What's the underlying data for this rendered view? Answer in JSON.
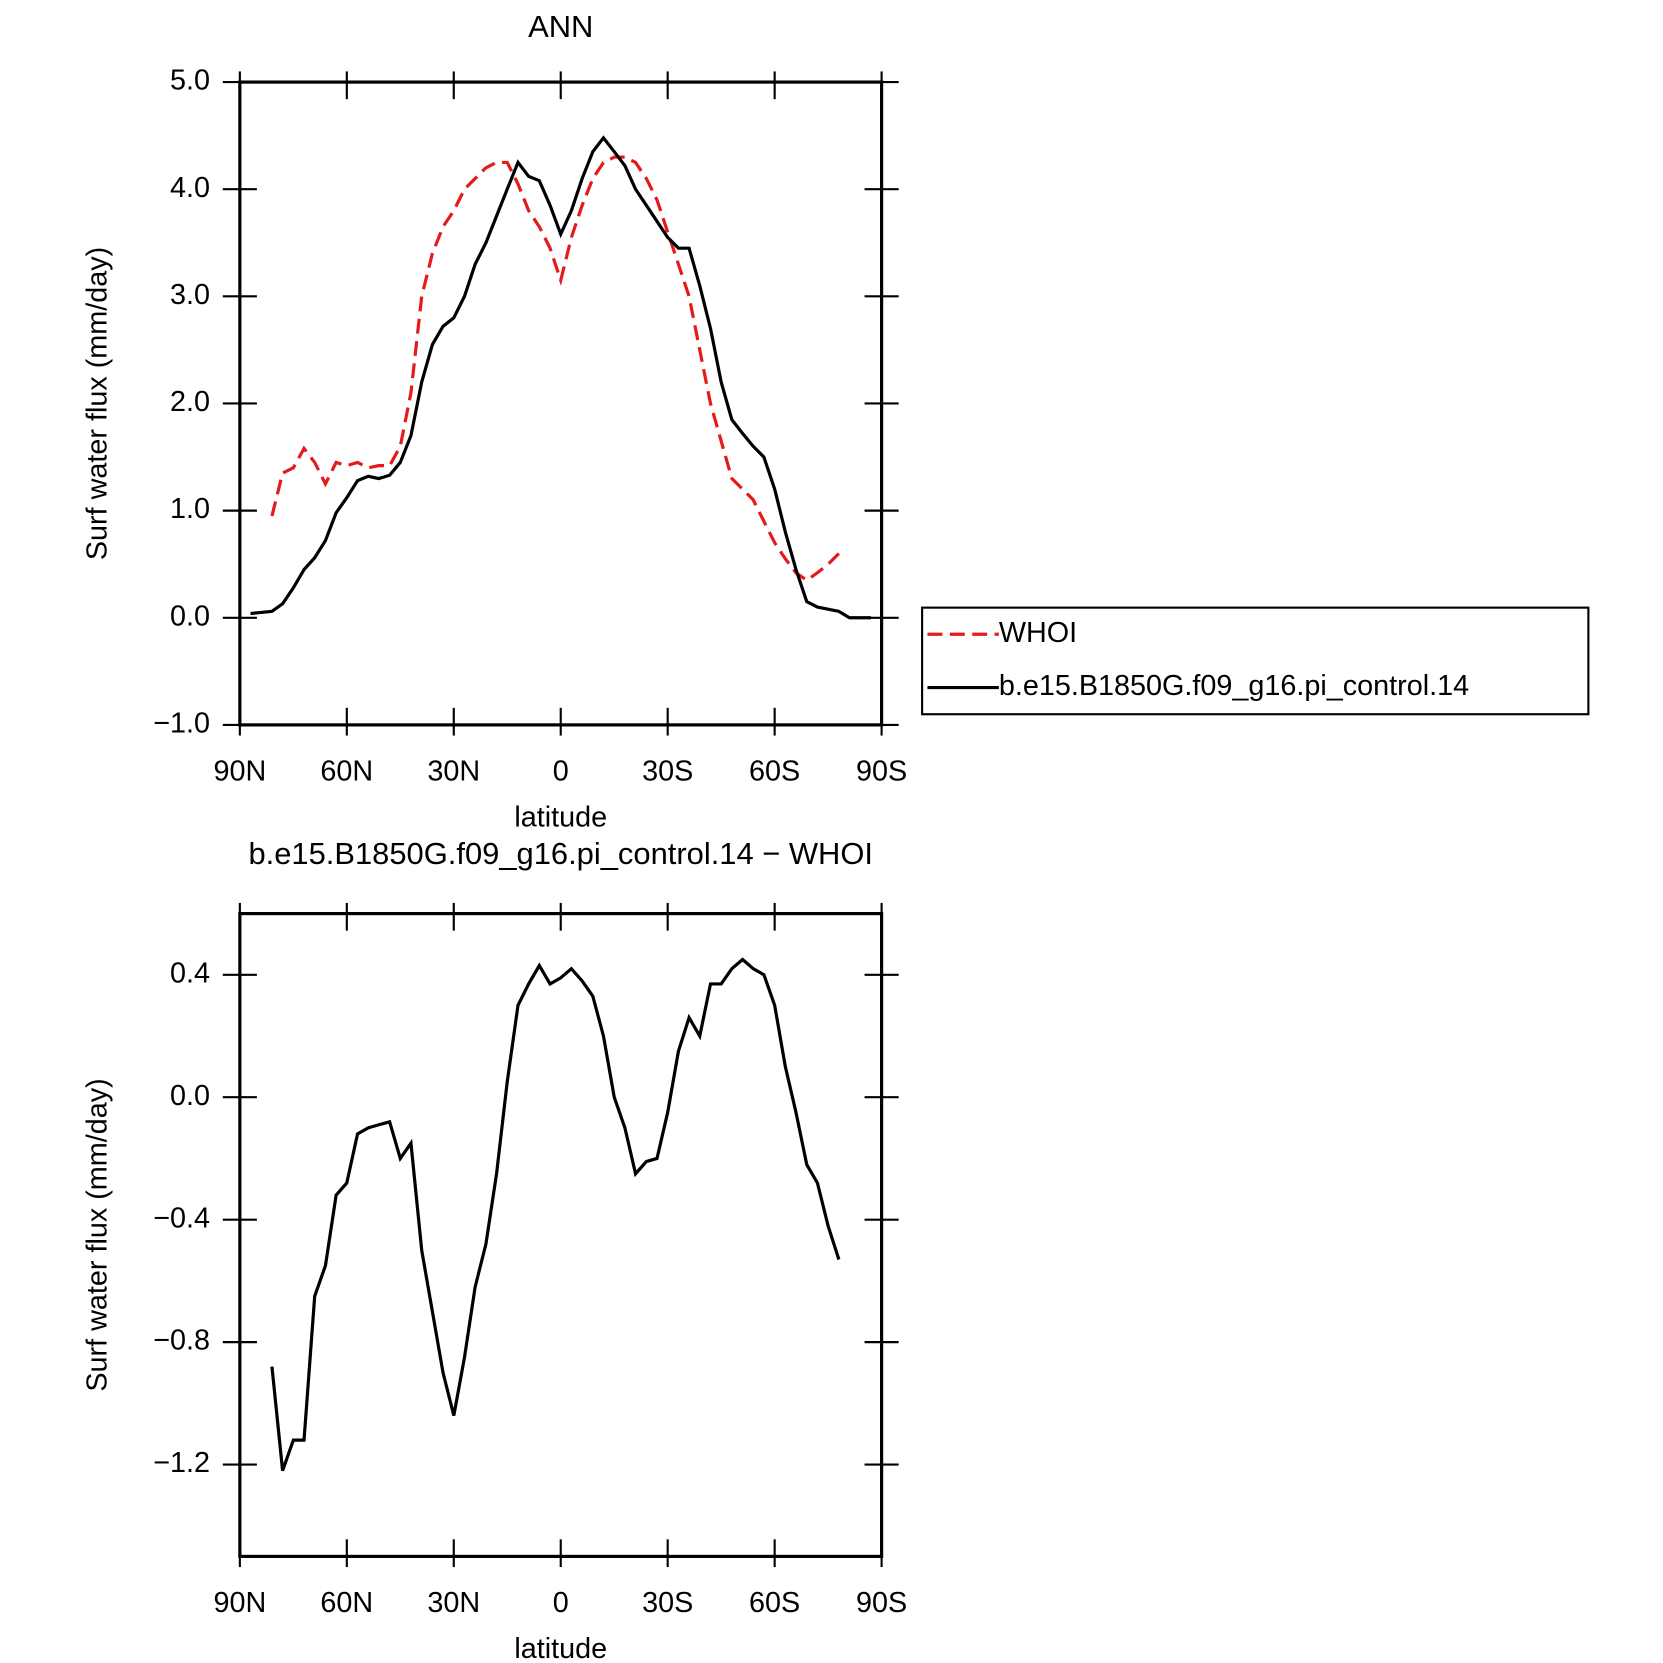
{
  "chart_data": [
    {
      "type": "line",
      "title": "ANN",
      "xlabel": "latitude",
      "ylabel": "Surf water flux (mm/day)",
      "x": [
        87,
        84,
        81,
        78,
        75,
        72,
        69,
        66,
        63,
        60,
        57,
        54,
        51,
        48,
        45,
        42,
        39,
        36,
        33,
        30,
        27,
        24,
        21,
        18,
        15,
        12,
        9,
        6,
        3,
        0,
        -3,
        -6,
        -9,
        -12,
        -15,
        -18,
        -21,
        -24,
        -27,
        -30,
        -33,
        -36,
        -39,
        -42,
        -45,
        -48,
        -51,
        -54,
        -57,
        -60,
        -63,
        -66,
        -69,
        -72,
        -75,
        -78,
        -81,
        -84,
        -87
      ],
      "series": [
        {
          "name": "WHOI",
          "color": "#e41a1c",
          "linestyle": "dashed",
          "values": [
            null,
            null,
            0.95,
            1.35,
            1.4,
            1.58,
            1.45,
            1.25,
            1.45,
            1.42,
            1.45,
            1.4,
            1.42,
            1.42,
            1.6,
            2.1,
            3.0,
            3.4,
            3.65,
            3.8,
            4.0,
            4.1,
            4.2,
            4.25,
            4.25,
            4.05,
            3.8,
            3.65,
            3.45,
            3.15,
            3.55,
            3.85,
            4.1,
            4.25,
            4.3,
            4.3,
            4.25,
            4.1,
            3.9,
            3.6,
            3.3,
            3.0,
            2.5,
            2.0,
            1.65,
            1.3,
            1.2,
            1.1,
            0.9,
            0.7,
            0.55,
            0.42,
            0.35,
            0.42,
            0.5,
            0.6,
            null,
            null,
            null
          ]
        },
        {
          "name": "b.e15.B1850G.f09_g16.pi_control.14",
          "color": "#000000",
          "linestyle": "solid",
          "values": [
            0.04,
            0.05,
            0.06,
            0.13,
            0.28,
            0.45,
            0.56,
            0.72,
            0.98,
            1.12,
            1.28,
            1.32,
            1.3,
            1.33,
            1.45,
            1.7,
            2.2,
            2.55,
            2.72,
            2.8,
            3.0,
            3.3,
            3.5,
            3.75,
            4.0,
            4.25,
            4.12,
            4.08,
            3.85,
            3.58,
            3.8,
            4.1,
            4.35,
            4.48,
            4.35,
            4.22,
            4.0,
            3.85,
            3.7,
            3.55,
            3.45,
            3.45,
            3.1,
            2.7,
            2.2,
            1.85,
            1.72,
            1.6,
            1.5,
            1.2,
            0.8,
            0.45,
            0.15,
            0.1,
            0.08,
            0.06,
            0.0,
            0.0,
            0.0
          ]
        }
      ],
      "xlim": [
        90,
        -90
      ],
      "xticks": [
        {
          "value": 90,
          "label": "90N"
        },
        {
          "value": 60,
          "label": "60N"
        },
        {
          "value": 30,
          "label": "30N"
        },
        0,
        {
          "value": -30,
          "label": "30S"
        },
        {
          "value": -60,
          "label": "60S"
        },
        {
          "value": -90,
          "label": "90S"
        }
      ],
      "ylim": [
        -1,
        5
      ],
      "yticks": [
        {
          "value": -1,
          "label": "−1.0"
        },
        {
          "value": 0,
          "label": "0.0"
        },
        {
          "value": 1,
          "label": "1.0"
        },
        {
          "value": 2,
          "label": "2.0"
        },
        {
          "value": 3,
          "label": "3.0"
        },
        {
          "value": 4,
          "label": "4.0"
        },
        {
          "value": 5,
          "label": "5.0"
        }
      ],
      "legend": "right",
      "grid": false
    },
    {
      "type": "line",
      "title": "b.e15.B1850G.f09_g16.pi_control.14 − WHOI",
      "xlabel": "latitude",
      "ylabel": "Surf water flux (mm/day)",
      "x": [
        87,
        84,
        81,
        78,
        75,
        72,
        69,
        66,
        63,
        60,
        57,
        54,
        51,
        48,
        45,
        42,
        39,
        36,
        33,
        30,
        27,
        24,
        21,
        18,
        15,
        12,
        9,
        6,
        3,
        0,
        -3,
        -6,
        -9,
        -12,
        -15,
        -18,
        -21,
        -24,
        -27,
        -30,
        -33,
        -36,
        -39,
        -42,
        -45,
        -48,
        -51,
        -54,
        -57,
        -60,
        -63,
        -66,
        -69,
        -72,
        -75,
        -78,
        -81,
        -84,
        -87
      ],
      "series": [
        {
          "color": "#000000",
          "linestyle": "solid",
          "values": [
            null,
            null,
            -0.88,
            -1.22,
            -1.12,
            -1.12,
            -0.65,
            -0.55,
            -0.32,
            -0.28,
            -0.12,
            -0.1,
            -0.09,
            -0.08,
            -0.2,
            -0.15,
            -0.5,
            -0.7,
            -0.9,
            -1.04,
            -0.85,
            -0.62,
            -0.48,
            -0.25,
            0.05,
            0.3,
            0.37,
            0.43,
            0.37,
            0.39,
            0.42,
            0.38,
            0.33,
            0.2,
            0.0,
            -0.1,
            -0.25,
            -0.21,
            -0.2,
            -0.05,
            0.15,
            0.26,
            0.2,
            0.37,
            0.37,
            0.42,
            0.45,
            0.42,
            0.4,
            0.3,
            0.1,
            -0.05,
            -0.22,
            -0.28,
            -0.42,
            -0.53,
            null,
            null,
            null
          ]
        }
      ],
      "xlim": [
        90,
        -90
      ],
      "xticks": [
        {
          "value": 90,
          "label": "90N"
        },
        {
          "value": 60,
          "label": "60N"
        },
        {
          "value": 30,
          "label": "30N"
        },
        0,
        {
          "value": -30,
          "label": "30S"
        },
        {
          "value": -60,
          "label": "60S"
        },
        {
          "value": -90,
          "label": "90S"
        }
      ],
      "ylim": [
        -1.5,
        0.6
      ],
      "yticks": [
        {
          "value": -1.2,
          "label": "−1.2"
        },
        {
          "value": -0.8,
          "label": "−0.8"
        },
        {
          "value": -0.4,
          "label": "−0.4"
        },
        {
          "value": 0,
          "label": "0.0"
        },
        0.4
      ],
      "grid": false
    }
  ]
}
